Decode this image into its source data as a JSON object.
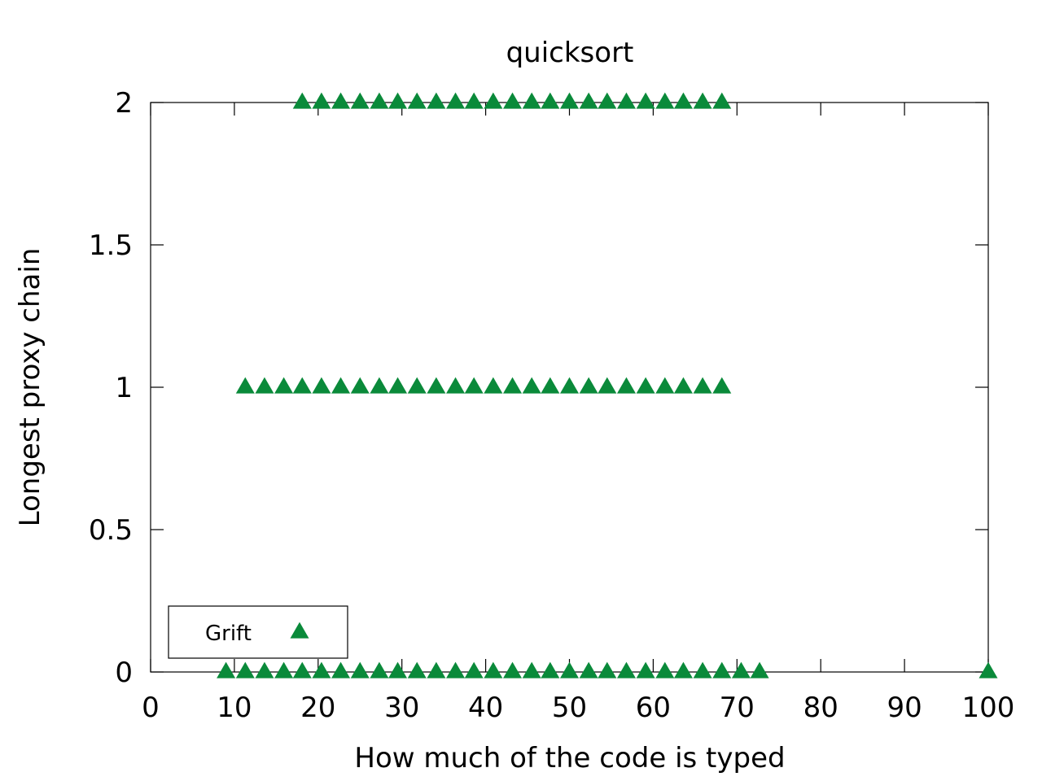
{
  "chart_data": {
    "type": "scatter",
    "title": "quicksort",
    "xlabel": "How much of the code is typed",
    "ylabel": "Longest proxy chain",
    "xlim": [
      0,
      100
    ],
    "ylim": [
      0,
      2
    ],
    "xticks": [
      0,
      10,
      20,
      30,
      40,
      50,
      60,
      70,
      80,
      90,
      100
    ],
    "yticks": [
      0,
      0.5,
      1,
      1.5,
      2
    ],
    "ytick_labels": [
      "0",
      "0.5",
      "1",
      "1.5",
      "2"
    ],
    "grid": false,
    "legend_position": "bottom-left",
    "series": [
      {
        "name": "Grift",
        "color": "#0a8a3a",
        "marker": "triangle-up-icon",
        "points": [
          {
            "x": 9.0,
            "y": 0
          },
          {
            "x": 11.3,
            "y": 0
          },
          {
            "x": 13.6,
            "y": 0
          },
          {
            "x": 15.9,
            "y": 0
          },
          {
            "x": 18.1,
            "y": 0
          },
          {
            "x": 20.4,
            "y": 0
          },
          {
            "x": 22.7,
            "y": 0
          },
          {
            "x": 25.0,
            "y": 0
          },
          {
            "x": 27.3,
            "y": 0
          },
          {
            "x": 29.5,
            "y": 0
          },
          {
            "x": 31.8,
            "y": 0
          },
          {
            "x": 34.1,
            "y": 0
          },
          {
            "x": 36.4,
            "y": 0
          },
          {
            "x": 38.6,
            "y": 0
          },
          {
            "x": 40.9,
            "y": 0
          },
          {
            "x": 43.2,
            "y": 0
          },
          {
            "x": 45.5,
            "y": 0
          },
          {
            "x": 47.7,
            "y": 0
          },
          {
            "x": 50.0,
            "y": 0
          },
          {
            "x": 52.3,
            "y": 0
          },
          {
            "x": 54.5,
            "y": 0
          },
          {
            "x": 56.8,
            "y": 0
          },
          {
            "x": 59.1,
            "y": 0
          },
          {
            "x": 61.4,
            "y": 0
          },
          {
            "x": 63.6,
            "y": 0
          },
          {
            "x": 65.9,
            "y": 0
          },
          {
            "x": 68.2,
            "y": 0
          },
          {
            "x": 70.5,
            "y": 0
          },
          {
            "x": 72.7,
            "y": 0
          },
          {
            "x": 100.0,
            "y": 0
          },
          {
            "x": 11.3,
            "y": 1
          },
          {
            "x": 13.6,
            "y": 1
          },
          {
            "x": 15.9,
            "y": 1
          },
          {
            "x": 18.1,
            "y": 1
          },
          {
            "x": 20.4,
            "y": 1
          },
          {
            "x": 22.7,
            "y": 1
          },
          {
            "x": 25.0,
            "y": 1
          },
          {
            "x": 27.3,
            "y": 1
          },
          {
            "x": 29.5,
            "y": 1
          },
          {
            "x": 31.8,
            "y": 1
          },
          {
            "x": 34.1,
            "y": 1
          },
          {
            "x": 36.4,
            "y": 1
          },
          {
            "x": 38.6,
            "y": 1
          },
          {
            "x": 40.9,
            "y": 1
          },
          {
            "x": 43.2,
            "y": 1
          },
          {
            "x": 45.5,
            "y": 1
          },
          {
            "x": 47.7,
            "y": 1
          },
          {
            "x": 50.0,
            "y": 1
          },
          {
            "x": 52.3,
            "y": 1
          },
          {
            "x": 54.5,
            "y": 1
          },
          {
            "x": 56.8,
            "y": 1
          },
          {
            "x": 59.1,
            "y": 1
          },
          {
            "x": 61.4,
            "y": 1
          },
          {
            "x": 63.6,
            "y": 1
          },
          {
            "x": 65.9,
            "y": 1
          },
          {
            "x": 68.2,
            "y": 1
          },
          {
            "x": 18.1,
            "y": 2
          },
          {
            "x": 20.4,
            "y": 2
          },
          {
            "x": 22.7,
            "y": 2
          },
          {
            "x": 25.0,
            "y": 2
          },
          {
            "x": 27.3,
            "y": 2
          },
          {
            "x": 29.5,
            "y": 2
          },
          {
            "x": 31.8,
            "y": 2
          },
          {
            "x": 34.1,
            "y": 2
          },
          {
            "x": 36.4,
            "y": 2
          },
          {
            "x": 38.6,
            "y": 2
          },
          {
            "x": 40.9,
            "y": 2
          },
          {
            "x": 43.2,
            "y": 2
          },
          {
            "x": 45.5,
            "y": 2
          },
          {
            "x": 47.7,
            "y": 2
          },
          {
            "x": 50.0,
            "y": 2
          },
          {
            "x": 52.3,
            "y": 2
          },
          {
            "x": 54.5,
            "y": 2
          },
          {
            "x": 56.8,
            "y": 2
          },
          {
            "x": 59.1,
            "y": 2
          },
          {
            "x": 61.4,
            "y": 2
          },
          {
            "x": 63.6,
            "y": 2
          },
          {
            "x": 65.9,
            "y": 2
          },
          {
            "x": 68.2,
            "y": 2
          }
        ]
      }
    ]
  }
}
